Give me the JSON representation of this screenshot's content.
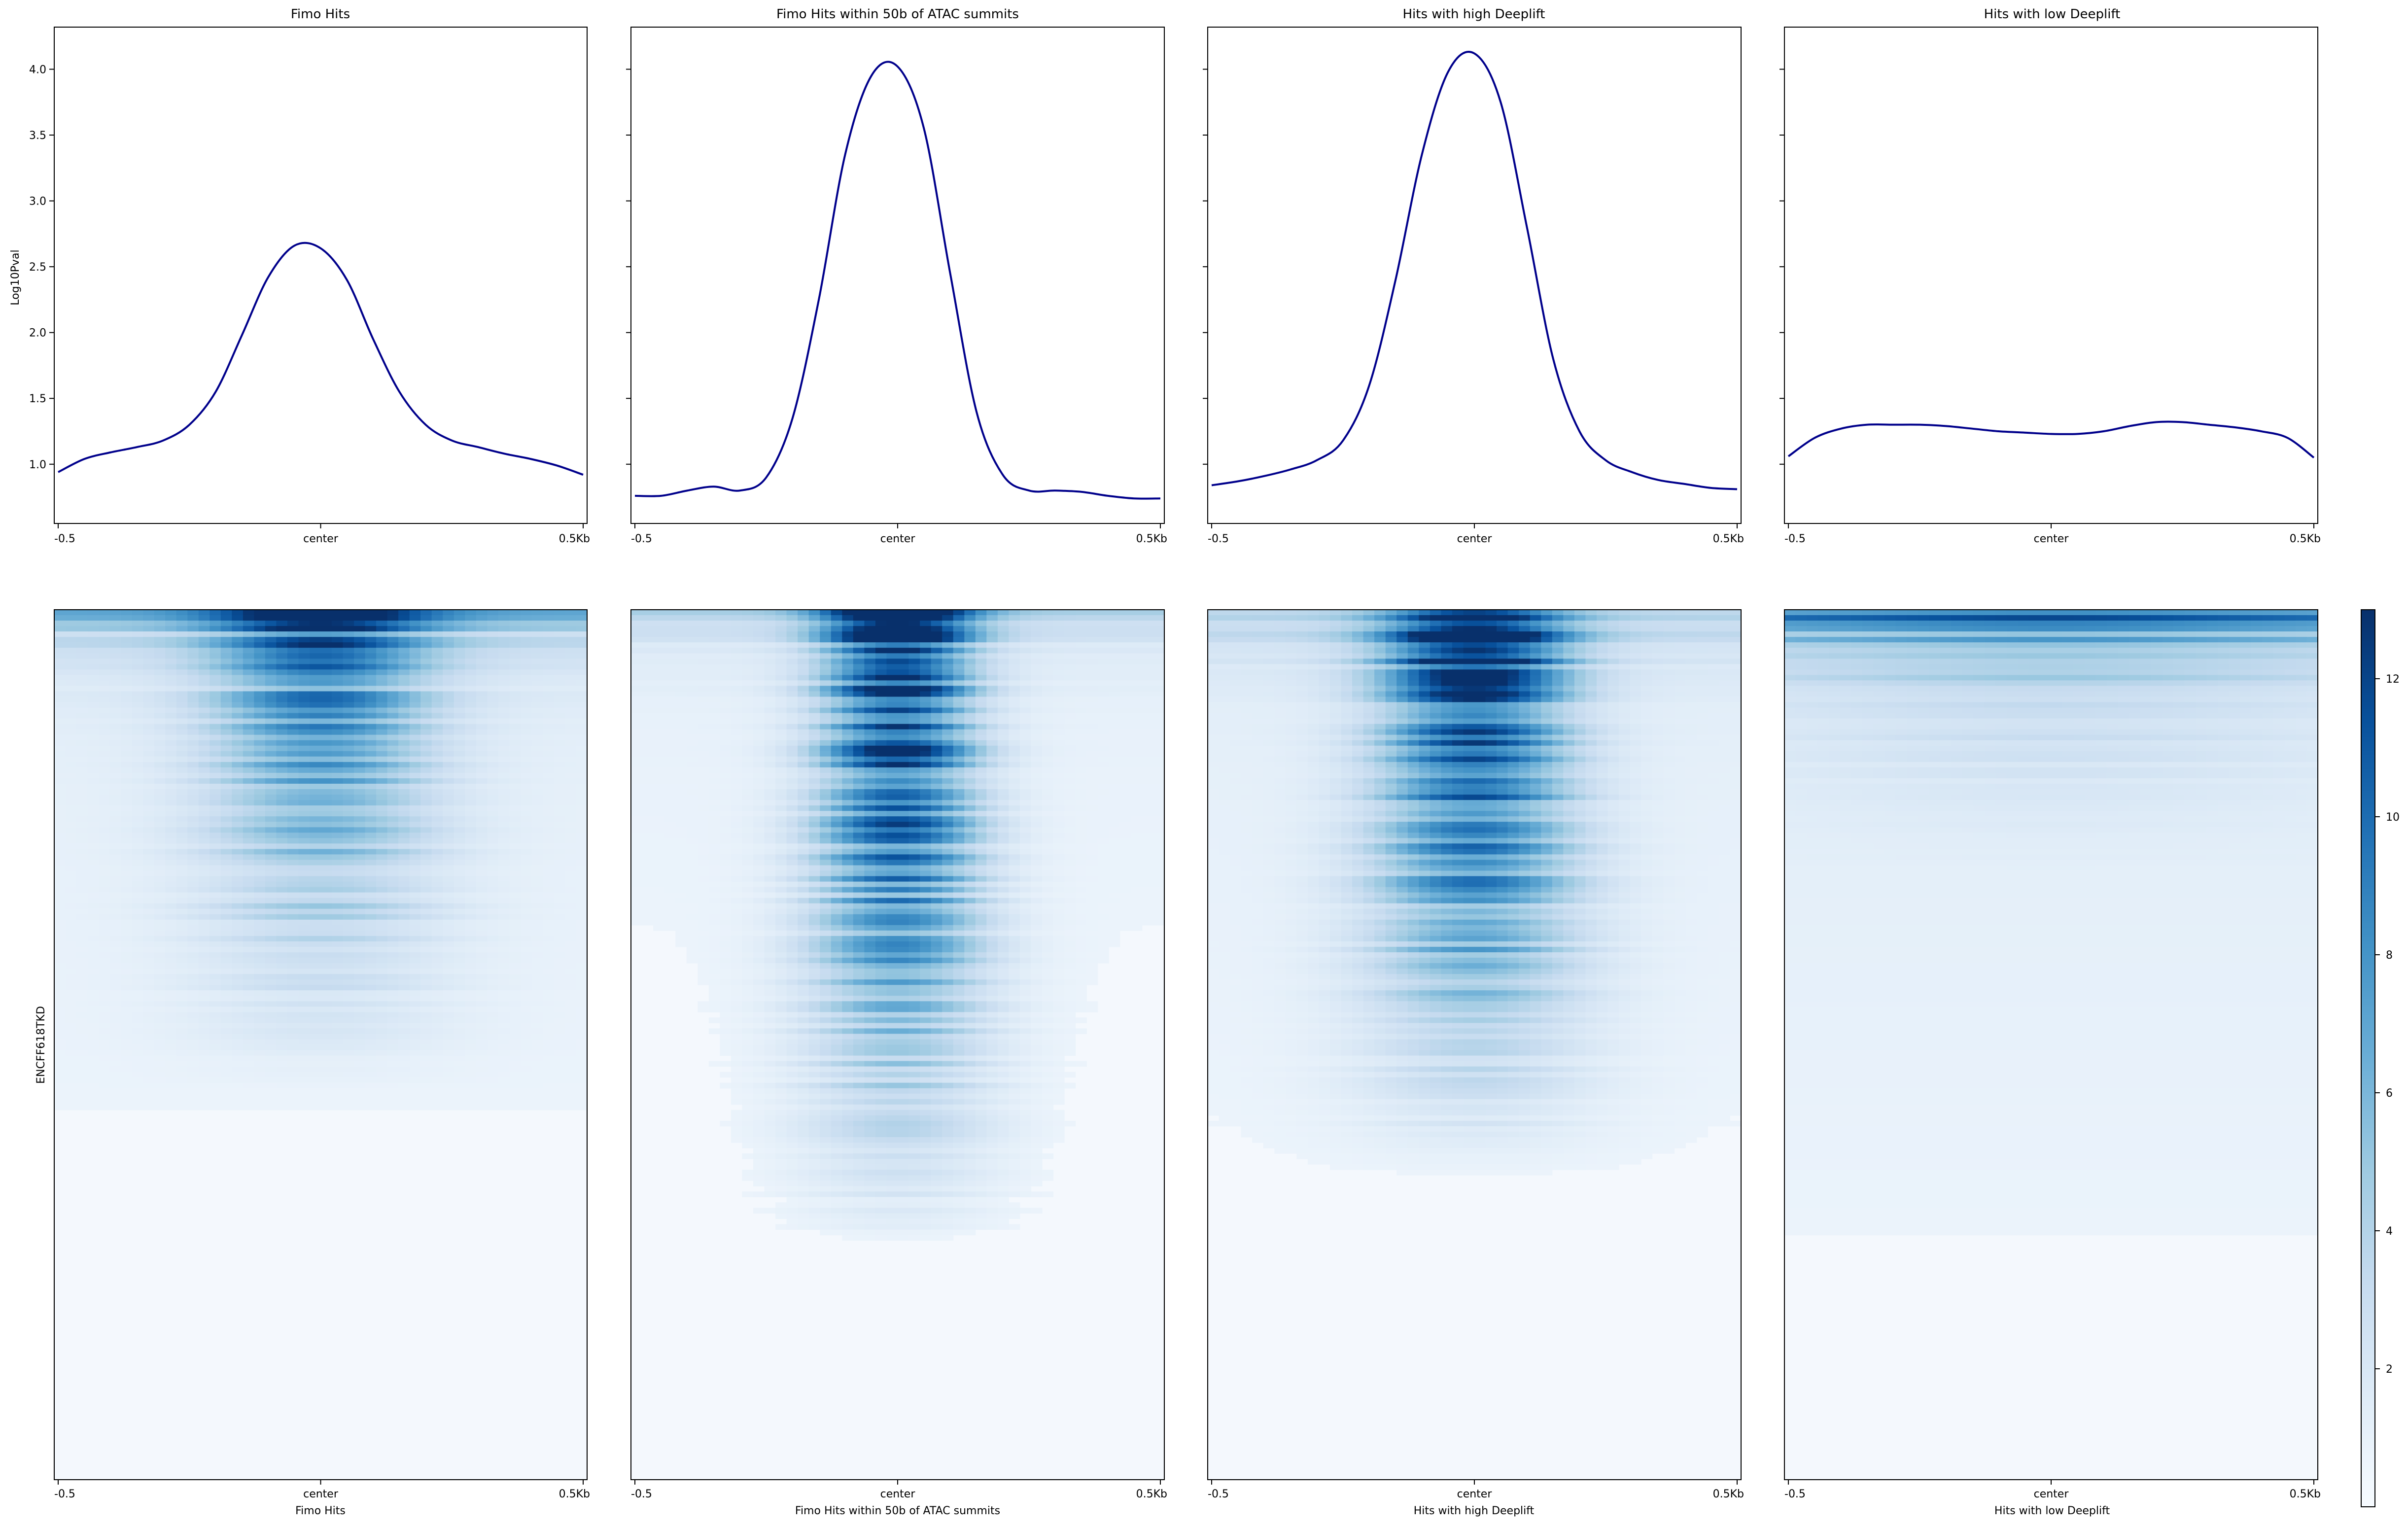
{
  "figure": {
    "row_label": "ENCFF618TKD",
    "colorbar_ticks": [
      2,
      4,
      6,
      8,
      10,
      12
    ],
    "colorbar_range": [
      0,
      13
    ],
    "x_tick_labels": [
      "-0.5",
      "center",
      "0.5Kb"
    ]
  },
  "chart_data": [
    {
      "type": "line",
      "title": "Fimo Hits",
      "ylabel": "Log10Pval",
      "ylim": [
        0.55,
        4.32
      ],
      "yticks": [
        "1.0",
        "1.5",
        "2.0",
        "2.5",
        "3.0",
        "3.5",
        "4.0"
      ],
      "x": [
        -0.5,
        -0.45,
        -0.4,
        -0.35,
        -0.3,
        -0.25,
        -0.2,
        -0.15,
        -0.1,
        -0.05,
        0.0,
        0.05,
        0.1,
        0.15,
        0.2,
        0.25,
        0.3,
        0.35,
        0.4,
        0.45,
        0.5
      ],
      "series": [
        {
          "color": "#00008b",
          "values": [
            0.94,
            1.04,
            1.09,
            1.13,
            1.18,
            1.3,
            1.55,
            1.98,
            2.42,
            2.66,
            2.64,
            2.4,
            1.95,
            1.55,
            1.3,
            1.18,
            1.13,
            1.08,
            1.04,
            0.99,
            0.92
          ]
        }
      ]
    },
    {
      "type": "line",
      "title": "Fimo Hits within 50b of ATAC summits",
      "ylim": [
        0.55,
        4.32
      ],
      "x": [
        -0.5,
        -0.45,
        -0.4,
        -0.35,
        -0.3,
        -0.25,
        -0.2,
        -0.15,
        -0.1,
        -0.05,
        0.0,
        0.05,
        0.1,
        0.15,
        0.2,
        0.25,
        0.3,
        0.35,
        0.4,
        0.45,
        0.5
      ],
      "series": [
        {
          "color": "#00008b",
          "values": [
            0.76,
            0.76,
            0.8,
            0.83,
            0.8,
            0.9,
            1.35,
            2.25,
            3.35,
            3.95,
            4.02,
            3.55,
            2.45,
            1.4,
            0.92,
            0.8,
            0.8,
            0.79,
            0.76,
            0.74,
            0.74
          ]
        }
      ]
    },
    {
      "type": "line",
      "title": "Hits with high Deeplift",
      "ylim": [
        0.55,
        4.32
      ],
      "x": [
        -0.5,
        -0.45,
        -0.4,
        -0.35,
        -0.3,
        -0.25,
        -0.2,
        -0.15,
        -0.1,
        -0.05,
        0.0,
        0.05,
        0.1,
        0.15,
        0.2,
        0.25,
        0.3,
        0.35,
        0.4,
        0.45,
        0.5
      ],
      "series": [
        {
          "color": "#00008b",
          "values": [
            0.84,
            0.87,
            0.91,
            0.96,
            1.03,
            1.18,
            1.6,
            2.4,
            3.35,
            3.98,
            4.12,
            3.75,
            2.8,
            1.8,
            1.25,
            1.03,
            0.94,
            0.88,
            0.85,
            0.82,
            0.81
          ]
        }
      ]
    },
    {
      "type": "line",
      "title": "Hits with low Deeplift",
      "ylim": [
        0.55,
        4.32
      ],
      "x": [
        -0.5,
        -0.45,
        -0.4,
        -0.35,
        -0.3,
        -0.25,
        -0.2,
        -0.15,
        -0.1,
        -0.05,
        0.0,
        0.05,
        0.1,
        0.15,
        0.2,
        0.25,
        0.3,
        0.35,
        0.4,
        0.45,
        0.5
      ],
      "series": [
        {
          "color": "#00008b",
          "values": [
            1.06,
            1.2,
            1.27,
            1.3,
            1.3,
            1.3,
            1.29,
            1.27,
            1.25,
            1.24,
            1.23,
            1.23,
            1.25,
            1.29,
            1.32,
            1.32,
            1.3,
            1.28,
            1.25,
            1.2,
            1.05
          ]
        }
      ]
    },
    {
      "type": "heatmap",
      "xlabel": "Fimo Hits",
      "peak_intensity": 0.6,
      "center_width": 0.13,
      "tail_depth": 0.55,
      "background": 0.1,
      "top_band": 0.35
    },
    {
      "type": "heatmap",
      "xlabel": "Fimo Hits within 50b of ATAC summits",
      "peak_intensity": 0.95,
      "center_width": 0.09,
      "tail_depth": 0.75,
      "background": 0.08,
      "top_band": 0.2
    },
    {
      "type": "heatmap",
      "xlabel": "Hits with high Deeplift",
      "peak_intensity": 0.95,
      "center_width": 0.11,
      "tail_depth": 0.65,
      "background": 0.1,
      "top_band": 0.25
    },
    {
      "type": "heatmap",
      "xlabel": "Hits with low Deeplift",
      "peak_intensity": 0.15,
      "center_width": 0.3,
      "tail_depth": 0.3,
      "background": 0.12,
      "top_band": 0.6
    }
  ]
}
